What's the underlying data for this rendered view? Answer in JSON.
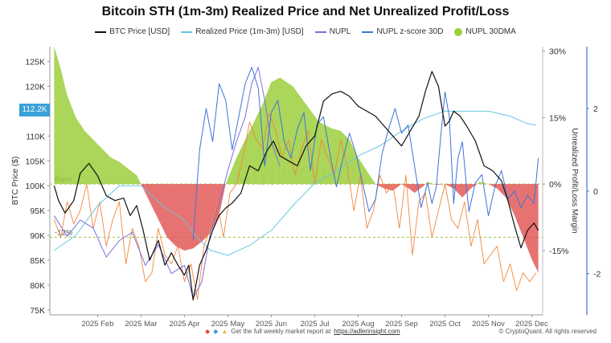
{
  "chart_data": {
    "type": "line",
    "title": "Bitcoin STH (1m-3m) Realized Price and Net Unrealized Profit/Loss",
    "colors": {
      "btc": "#111111",
      "realized": "#67c6e0",
      "nupl": "#7a6fe0",
      "zscore": "#3f72d9",
      "nupl30_profit": "#9ccf3c",
      "nupl30_loss": "#e0504e",
      "nupl_daily": "#f0873c",
      "base": "#99c24d"
    },
    "legend": [
      {
        "key": "btc",
        "label": "BTC Price [USD]",
        "marker": "line",
        "color": "#111111"
      },
      {
        "key": "realized",
        "label": "Realized Price (1m-3m) [USD]",
        "marker": "line",
        "color": "#67c6e0"
      },
      {
        "key": "nupl",
        "label": "NUPL",
        "marker": "line",
        "color": "#7a6fe0"
      },
      {
        "key": "zscore",
        "label": "NUPL z-score 30D",
        "marker": "line",
        "color": "#3f72d9"
      },
      {
        "key": "nupl30",
        "label": "NUPL 30DMA",
        "marker": "dot",
        "color": "#9ccf3c"
      }
    ],
    "xaxis": {
      "labels": [
        "2025 Feb",
        "2025 Mar",
        "2025 Apr",
        "2025 May",
        "2025 Jun",
        "2025 Jul",
        "2025 Aug",
        "2025 Sep",
        "2025 Oct",
        "2025 Nov",
        "2025 Dec"
      ],
      "label_months": [
        1,
        2,
        3,
        4,
        5,
        6,
        7,
        8,
        9,
        10,
        11
      ],
      "range_months": [
        -0.1,
        11.25
      ]
    },
    "yaxis_left": {
      "title": "BTC Price ($)",
      "ticks": [
        75,
        80,
        85,
        90,
        95,
        100,
        105,
        110,
        115,
        120,
        125
      ],
      "tick_labels": [
        "75K",
        "80K",
        "85K",
        "90K",
        "95K",
        "100K",
        "105K",
        "110K",
        "115K",
        "120K",
        "125K"
      ],
      "range": [
        74,
        128
      ]
    },
    "yaxis_right_pct": {
      "title": "Unrealized Profit/Loss Margin",
      "ticks": [
        30,
        15,
        0,
        -15
      ],
      "tick_labels": [
        "30%",
        "15%",
        "0%",
        "-15%"
      ],
      "range": [
        -29.5,
        31
      ]
    },
    "yaxis_right_z": {
      "ticks": [
        2,
        0,
        -2
      ],
      "tick_labels": [
        "2",
        "0",
        "-2"
      ],
      "range": [
        -3.0,
        3.5
      ]
    },
    "reference_lines": [
      {
        "label": "Base",
        "pct": 0
      },
      {
        "label": "-12%",
        "pct": -12
      }
    ],
    "current_price_label": "112.2K",
    "series": [
      {
        "name": "BTC Price [USD]",
        "key": "btc",
        "axis": "left",
        "x": [
          0.0,
          0.1,
          0.25,
          0.45,
          0.6,
          0.8,
          1.0,
          1.2,
          1.4,
          1.6,
          1.75,
          1.9,
          2.05,
          2.2,
          2.4,
          2.55,
          2.7,
          2.85,
          3.0,
          3.1,
          3.2,
          3.35,
          3.5,
          3.65,
          3.8,
          3.95,
          4.1,
          4.3,
          4.5,
          4.7,
          4.9,
          5.05,
          5.2,
          5.4,
          5.6,
          5.8,
          6.0,
          6.2,
          6.4,
          6.6,
          6.8,
          7.0,
          7.2,
          7.4,
          7.6,
          7.8,
          8.0,
          8.2,
          8.4,
          8.55,
          8.7,
          8.85,
          9.0,
          9.1,
          9.2,
          9.35,
          9.5,
          9.7,
          9.9,
          10.1,
          10.3,
          10.45,
          10.6,
          10.75,
          10.9,
          11.05,
          11.15
        ],
        "y": [
          100,
          97,
          94.5,
          97,
          102.5,
          104.5,
          102,
          98,
          97,
          97.5,
          94,
          96,
          91,
          85,
          89,
          84,
          86.5,
          84,
          82,
          84,
          77,
          84,
          87,
          91,
          94,
          95.5,
          96.5,
          98.5,
          104,
          103,
          107,
          109,
          106,
          105,
          104,
          108,
          110,
          117,
          118.5,
          119,
          118,
          116,
          115,
          114,
          112,
          110,
          108,
          111,
          114,
          119,
          123,
          120,
          112,
          113,
          115,
          114,
          112,
          109,
          104,
          103,
          101,
          97,
          92,
          87.5,
          91,
          92.5,
          91
        ]
      },
      {
        "name": "Realized Price (1m-3m) [USD]",
        "key": "realized",
        "axis": "left",
        "x": [
          0.0,
          0.5,
          1.0,
          1.5,
          2.0,
          2.5,
          3.0,
          3.3,
          3.6,
          4.0,
          4.5,
          5.0,
          5.5,
          6.0,
          6.5,
          7.0,
          7.5,
          8.0,
          8.5,
          9.0,
          9.5,
          10.0,
          10.5,
          10.9,
          11.1
        ],
        "y": [
          87,
          90,
          96,
          100,
          100,
          96,
          93,
          89.5,
          87,
          86,
          88,
          91,
          96,
          100.5,
          103,
          106,
          108,
          111,
          113.5,
          115,
          115,
          115,
          114,
          112.5,
          112.2
        ]
      },
      {
        "name": "NUPL",
        "key": "nupl",
        "axis": "z",
        "x": [
          0.0,
          0.3,
          0.6,
          0.9,
          1.2,
          1.5,
          1.8,
          2.1,
          2.4,
          2.7,
          3.0,
          3.2,
          3.4,
          3.6,
          3.8,
          4.0,
          4.2,
          4.4,
          4.55,
          4.7,
          4.85,
          5.0,
          5.2
        ],
        "y": [
          -0.6,
          -1.1,
          -0.7,
          -0.9,
          -1.6,
          -1.2,
          -1.0,
          -1.8,
          -1.3,
          -2.0,
          -1.8,
          -2.6,
          -2.2,
          -1.0,
          -0.3,
          0.5,
          1.2,
          1.8,
          2.6,
          3.0,
          2.2,
          1.2,
          0.6
        ]
      },
      {
        "name": "NUPL z-score 30D",
        "key": "zscore",
        "axis": "z",
        "x": [
          3.2,
          3.35,
          3.5,
          3.65,
          3.8,
          3.95,
          4.1,
          4.25,
          4.4,
          4.55,
          4.7,
          4.85,
          5.0,
          5.15,
          5.3,
          5.45,
          5.6,
          5.75,
          5.9,
          6.05,
          6.2,
          6.35,
          6.5,
          6.65,
          6.8,
          6.95,
          7.1,
          7.25,
          7.4,
          7.55,
          7.7,
          7.85,
          8.0,
          8.15,
          8.3,
          8.45,
          8.6,
          8.7,
          8.8,
          8.9,
          9.0,
          9.1,
          9.2,
          9.3,
          9.4,
          9.55,
          9.7,
          9.85,
          10.0,
          10.15,
          10.3,
          10.45,
          10.6,
          10.75,
          10.9,
          11.05,
          11.15
        ],
        "y": [
          -1.2,
          1.0,
          2.0,
          1.2,
          2.6,
          2.2,
          1.0,
          1.8,
          2.6,
          3.0,
          2.5,
          0.6,
          1.9,
          2.2,
          1.2,
          0.8,
          1.5,
          1.9,
          0.5,
          1.6,
          1.8,
          0.9,
          0.1,
          0.8,
          1.4,
          0.9,
          0.2,
          -0.5,
          -0.2,
          0.9,
          1.5,
          2.0,
          1.4,
          1.6,
          0.6,
          -0.4,
          0.2,
          -0.3,
          0.1,
          1.3,
          2.4,
          1.8,
          -0.3,
          0.8,
          1.2,
          -0.5,
          0.2,
          0.4,
          -0.6,
          0.1,
          0.5,
          -0.2,
          0.0,
          -0.4,
          -0.1,
          -0.3,
          0.8
        ]
      },
      {
        "name": "NUPL 30DMA",
        "key": "nupl30",
        "axis": "pct",
        "x": [
          0.0,
          0.15,
          0.3,
          0.5,
          0.7,
          0.9,
          1.1,
          1.3,
          1.5,
          1.7,
          1.9,
          2.0,
          2.2,
          2.4,
          2.6,
          2.8,
          3.0,
          3.2,
          3.4,
          3.6,
          3.8,
          3.95,
          4.2,
          4.5,
          4.8,
          5.0,
          5.2,
          5.5,
          5.8,
          6.1,
          6.4,
          6.6,
          6.8,
          7.0,
          7.2,
          7.4,
          7.6,
          7.8,
          8.0,
          8.2,
          8.3,
          8.5,
          8.6,
          8.8,
          9.0,
          9.2,
          9.4,
          9.6,
          9.8,
          10.0,
          10.2,
          10.4,
          10.6,
          10.8,
          11.0,
          11.15
        ],
        "y": [
          31,
          26,
          20,
          15,
          12,
          10,
          8,
          6,
          5,
          3.5,
          2,
          0,
          -4,
          -8,
          -12,
          -14,
          -15,
          -14.5,
          -13,
          -11,
          -7,
          0,
          6,
          12,
          18,
          23,
          24,
          22,
          18,
          14,
          12.5,
          12,
          10,
          6,
          3,
          0,
          -1,
          -1.5,
          0,
          -1.2,
          -2,
          -0.5,
          0.5,
          -0.2,
          0,
          -1,
          -3,
          -1,
          0.5,
          0,
          -1,
          -3,
          -7,
          -12,
          -17,
          -20
        ]
      },
      {
        "name": "NUPL daily",
        "key": "nupl_daily",
        "axis": "pct",
        "x": [
          0.0,
          0.15,
          0.3,
          0.45,
          0.6,
          0.75,
          0.9,
          1.05,
          1.2,
          1.35,
          1.5,
          1.65,
          1.8,
          1.95,
          2.1,
          2.25,
          2.4,
          2.55,
          2.7,
          2.85,
          3.0,
          3.15,
          3.3,
          3.45,
          3.6,
          3.75,
          3.9,
          4.05,
          4.2,
          4.35,
          4.5,
          4.65,
          4.8,
          4.95,
          5.1,
          5.25,
          5.4,
          5.55,
          5.7,
          5.85,
          6.0,
          6.15,
          6.3,
          6.45,
          6.6,
          6.75,
          6.9,
          7.05,
          7.2,
          7.35,
          7.5,
          7.65,
          7.8,
          7.95,
          8.1,
          8.25,
          8.4,
          8.55,
          8.7,
          8.85,
          9.0,
          9.15,
          9.3,
          9.45,
          9.6,
          9.75,
          9.9,
          10.05,
          10.2,
          10.35,
          10.5,
          10.65,
          10.8,
          10.95,
          11.1
        ],
        "y": [
          -8,
          -12,
          -4,
          -9,
          -6,
          0,
          -10,
          -4,
          -14,
          -8,
          -4,
          -18,
          -10,
          -14,
          -22,
          -20,
          -10,
          -16,
          -18,
          -14,
          -22,
          -18,
          -26,
          -14,
          -10,
          -4,
          -12,
          -2,
          0,
          6,
          14,
          10,
          8,
          16,
          12,
          6,
          10,
          2,
          8,
          12,
          0,
          10,
          6,
          2,
          10,
          4,
          -6,
          2,
          -10,
          -6,
          2,
          -2,
          0,
          -10,
          2,
          -16,
          -4,
          -2,
          -12,
          -6,
          0,
          -8,
          -10,
          -4,
          -14,
          -8,
          -18,
          -16,
          -14,
          -22,
          -18,
          -24,
          -20,
          -22,
          -20
        ]
      }
    ]
  },
  "footer": {
    "center_text": "Get the full weekly market report at",
    "link_text": "https://adlerinsight.com",
    "right_text": "© CryptoQuant. All rights reserved"
  }
}
